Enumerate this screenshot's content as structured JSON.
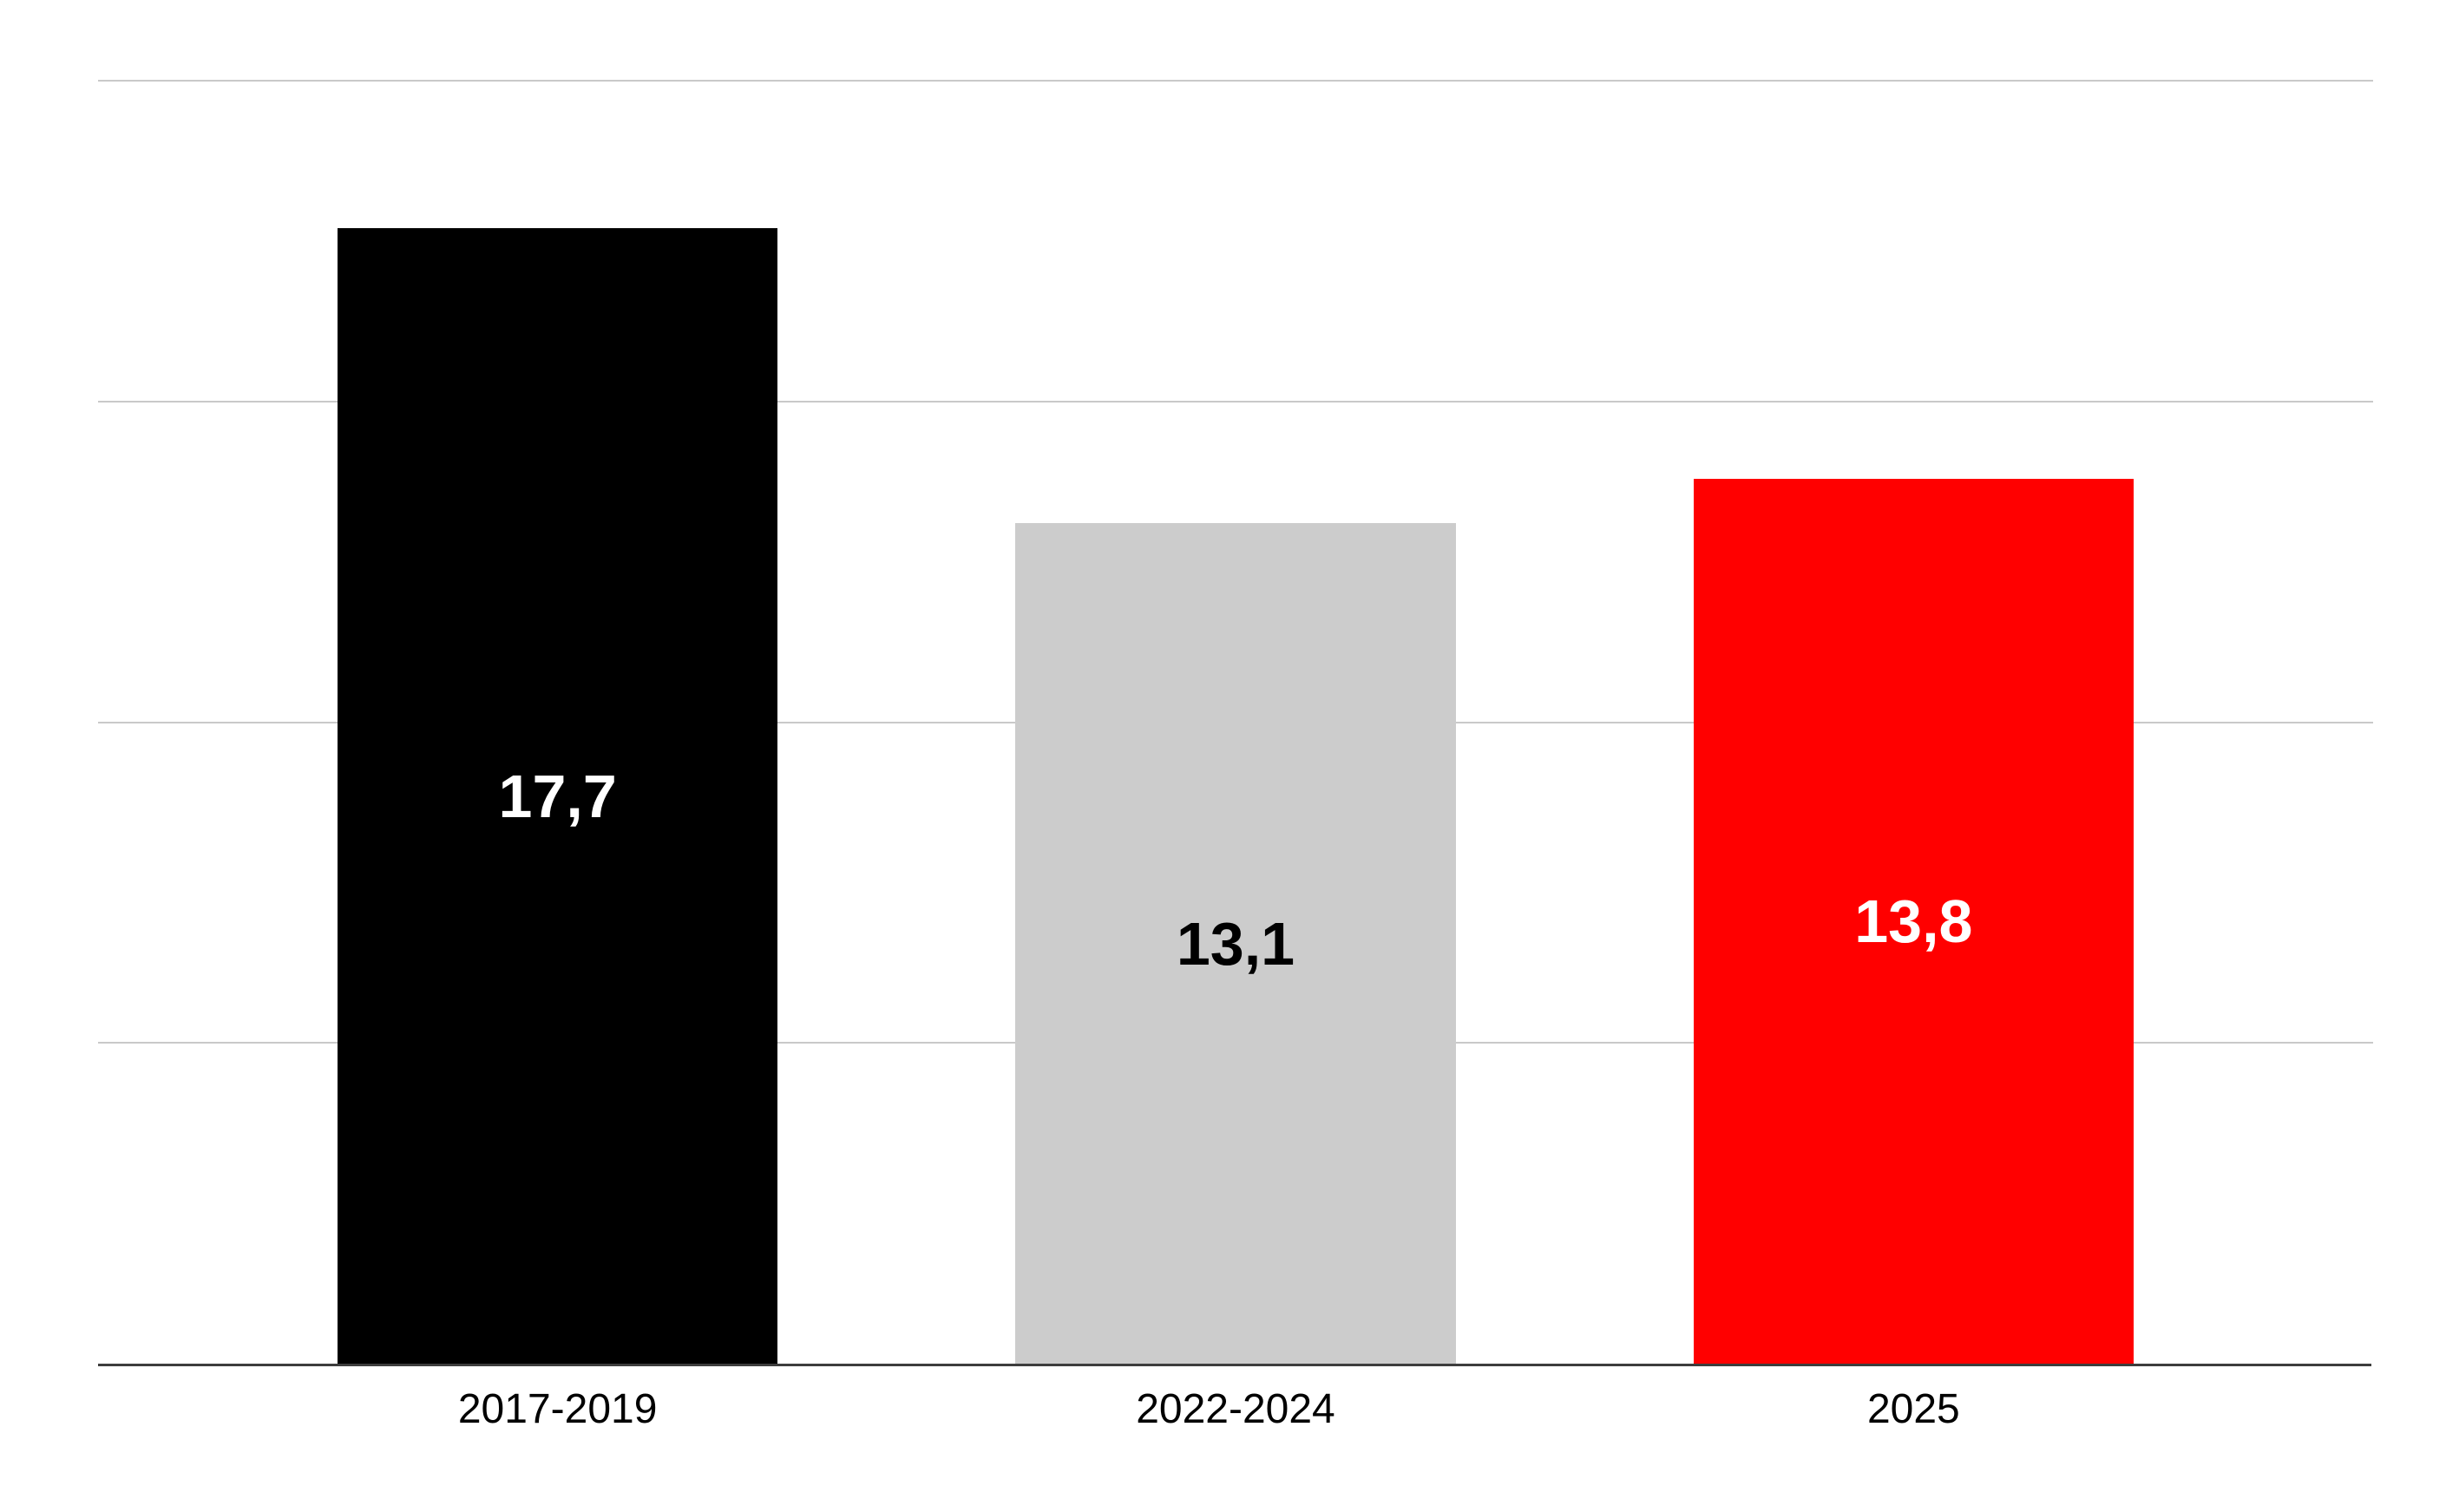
{
  "chart_data": {
    "type": "bar",
    "title": "",
    "xlabel": "",
    "ylabel": "",
    "categories": [
      "2017-2019",
      "2022-2024",
      "2025"
    ],
    "values": [
      17.7,
      13.1,
      13.8
    ],
    "value_labels": [
      "17,7",
      "13,1",
      "13,8"
    ],
    "bar_colors": [
      "#000000",
      "#cccccc",
      "#ff0000"
    ],
    "value_label_colors": [
      "#ffffff",
      "#000000",
      "#ffffff"
    ],
    "ylim": [
      0,
      20
    ],
    "grid_step": 5,
    "grid": true,
    "legend": false,
    "gridline_color": "#c9c9c9",
    "axis_line_color": "#3d3d3d",
    "background": "#ffffff"
  }
}
